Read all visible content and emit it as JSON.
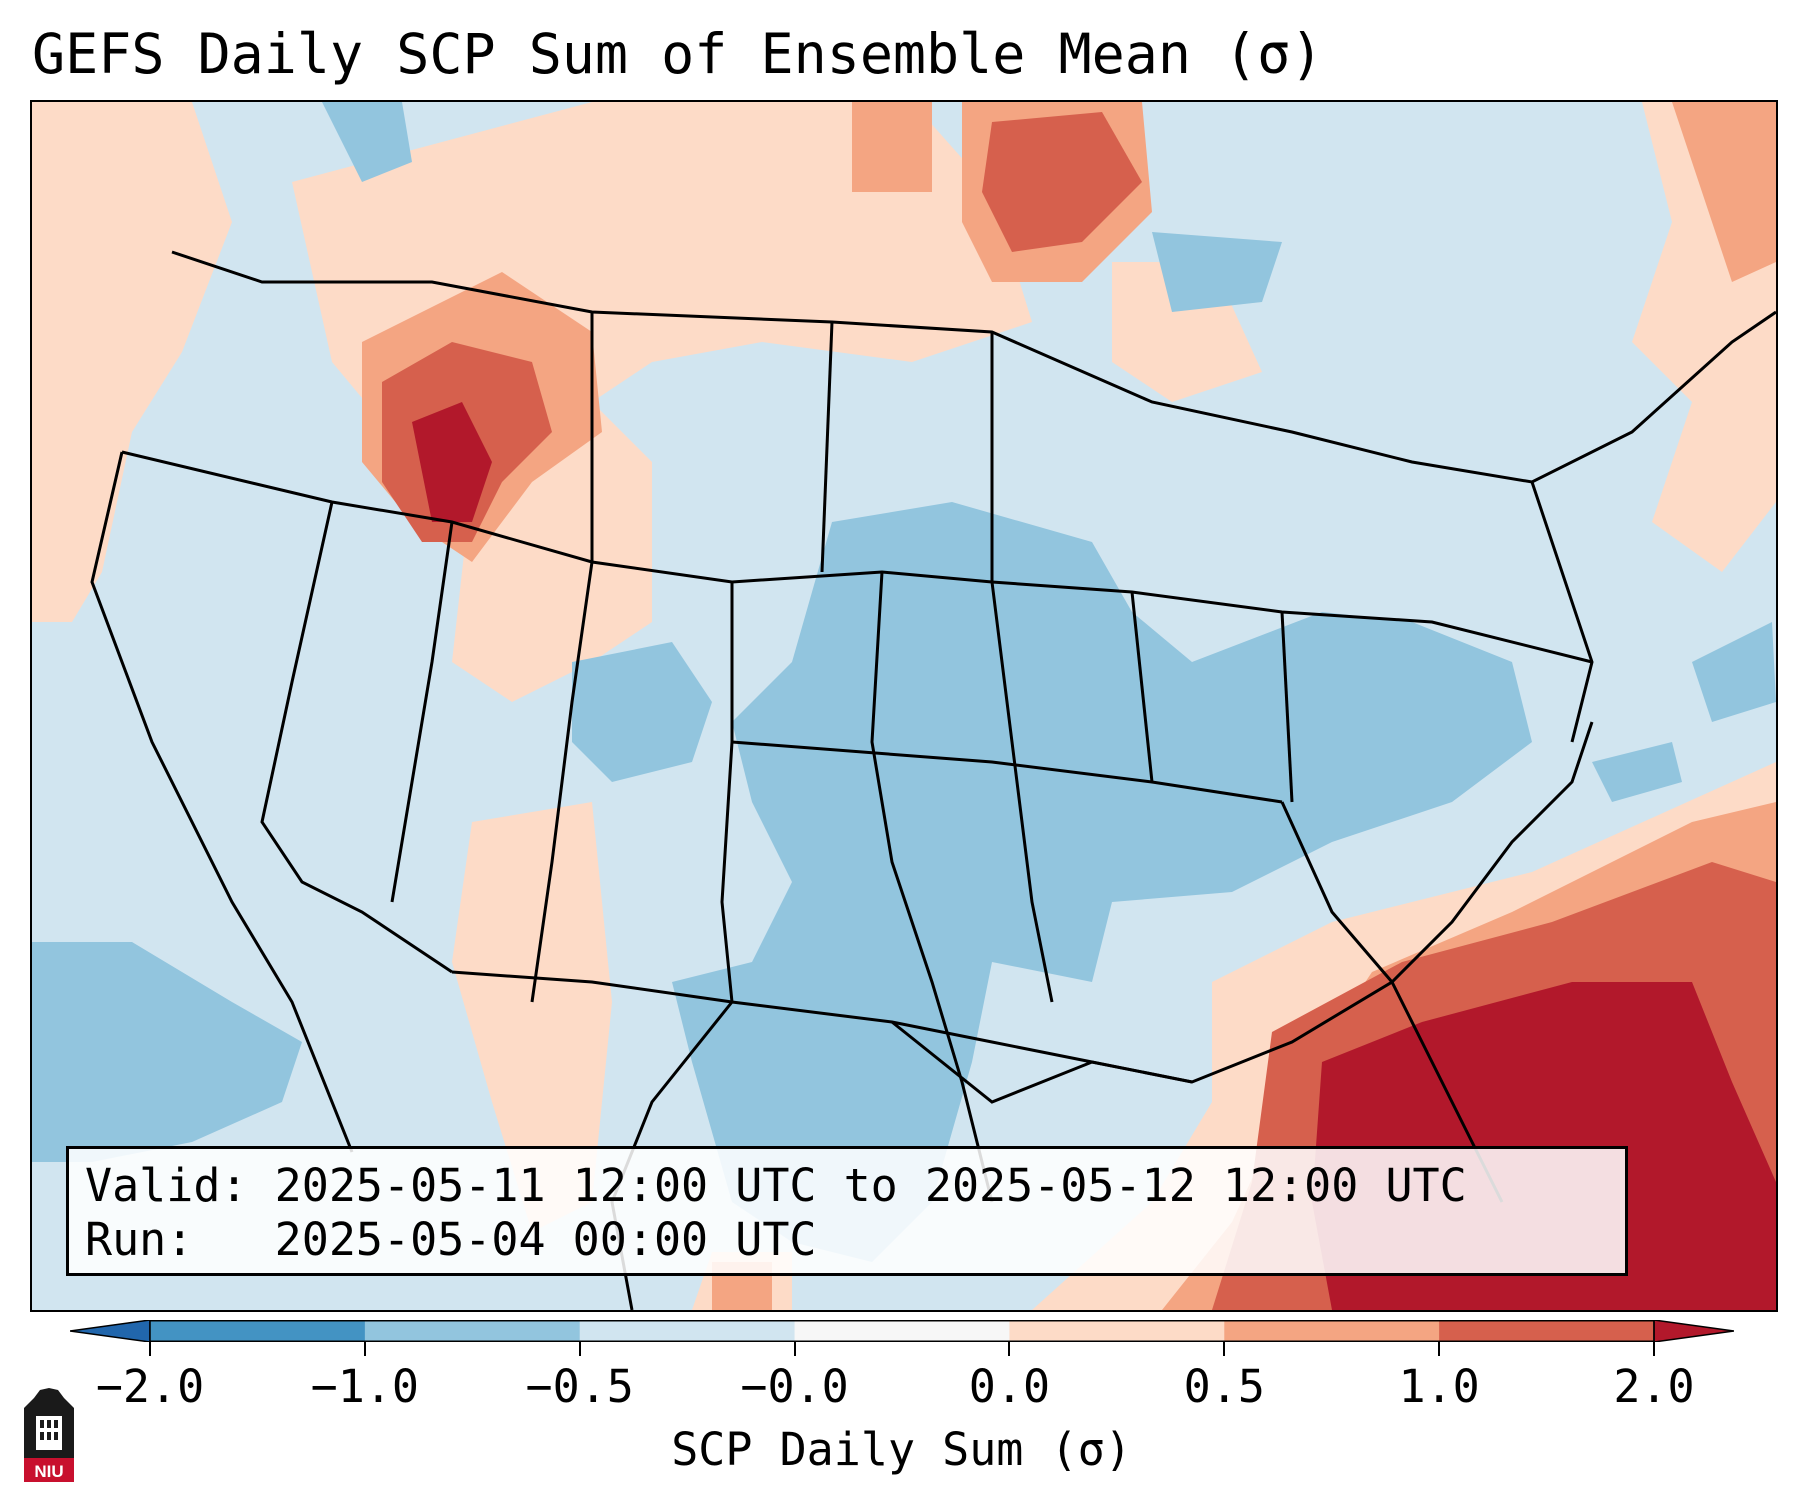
{
  "title": "GEFS Daily SCP Sum of Ensemble Mean (σ)",
  "info": {
    "valid_label": "Valid:",
    "valid_value": "2025-05-11 12:00 UTC to 2025-05-12 12:00 UTC",
    "run_label": "Run:",
    "run_value": "2025-05-04 00:00 UTC"
  },
  "colorbar": {
    "label": "SCP Daily Sum (σ)",
    "ticks": [
      "−2.0",
      "−1.0",
      "−0.5",
      "−0.0",
      "0.0",
      "0.5",
      "1.0",
      "2.0"
    ],
    "colors": [
      "#2166ac",
      "#4393c3",
      "#92c5de",
      "#d1e5f0",
      "#f7f7f7",
      "#fddbc7",
      "#f4a582",
      "#d6604d",
      "#b2182b"
    ]
  },
  "logo": {
    "text": "NIU",
    "icon": "university-seal-icon"
  }
}
